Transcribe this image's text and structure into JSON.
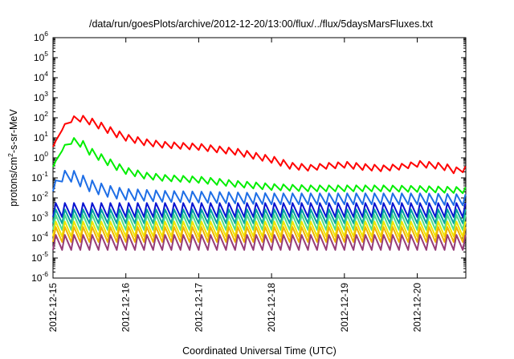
{
  "chart_data": {
    "type": "line",
    "title": "/data/run/goesPlots/archive/2012-12-20/13:00/flux/../flux/5daysMarsFluxes.txt",
    "xlabel": "Coordinated Universal Time (UTC)",
    "ylabel": {
      "prefix": "protons/cm",
      "exponent": "2",
      "suffix": "-s-sr-MeV"
    },
    "x_tick_labels": [
      "2012-12-15",
      "2012-12-16",
      "2012-12-17",
      "2012-12-18",
      "2012-12-19",
      "2012-12-20"
    ],
    "xlim": [
      "2012-12-15T00:00",
      "2012-12-20T16:00"
    ],
    "y_tick_labels": [
      {
        "base": "10",
        "exp": "-6"
      },
      {
        "base": "10",
        "exp": "-5"
      },
      {
        "base": "10",
        "exp": "-4"
      },
      {
        "base": "10",
        "exp": "-3"
      },
      {
        "base": "10",
        "exp": "-2"
      },
      {
        "base": "10",
        "exp": "-1"
      },
      {
        "base": "10",
        "exp": "0"
      },
      {
        "base": "10",
        "exp": "1"
      },
      {
        "base": "10",
        "exp": "2"
      },
      {
        "base": "10",
        "exp": "3"
      },
      {
        "base": "10",
        "exp": "4"
      },
      {
        "base": "10",
        "exp": "5"
      },
      {
        "base": "10",
        "exp": "6"
      }
    ],
    "ylim": [
      1e-06,
      1000000.0
    ],
    "yscale": "log",
    "grid": false,
    "legend": "none",
    "sawtooth_period_hours": 3,
    "series": [
      {
        "color": "#ff0000",
        "x": [
          "2012-12-15T00:00",
          "2012-12-15T02:00",
          "2012-12-15T04:00",
          "2012-12-15T06:00",
          "2012-12-15T09:00",
          "2012-12-15T12:00",
          "2012-12-15T16:00",
          "2012-12-15T20:00",
          "2012-12-16T00:00",
          "2012-12-16T06:00",
          "2012-12-16T12:00",
          "2012-12-17T00:00",
          "2012-12-17T12:00",
          "2012-12-18T00:00",
          "2012-12-18T06:00",
          "2012-12-18T12:00",
          "2012-12-18T18:00",
          "2012-12-19T00:00",
          "2012-12-19T06:00",
          "2012-12-19T12:00",
          "2012-12-19T18:00",
          "2012-12-20T00:00",
          "2012-12-20T08:00",
          "2012-12-20T12:00",
          "2012-12-20T16:00"
        ],
        "y": [
          5,
          20,
          60,
          85,
          90,
          65,
          35,
          17,
          10,
          6,
          4.5,
          3.5,
          2,
          0.8,
          0.4,
          0.32,
          0.4,
          0.45,
          0.35,
          0.3,
          0.36,
          0.5,
          0.38,
          0.24,
          0.28
        ],
        "amplitude": 0.3
      },
      {
        "color": "#00ee00",
        "x": [
          "2012-12-15T00:00",
          "2012-12-15T02:00",
          "2012-12-15T04:00",
          "2012-12-15T06:00",
          "2012-12-15T09:00",
          "2012-12-15T12:00",
          "2012-12-15T16:00",
          "2012-12-15T20:00",
          "2012-12-16T00:00",
          "2012-12-16T06:00",
          "2012-12-16T12:00",
          "2012-12-17T00:00",
          "2012-12-17T12:00",
          "2012-12-18T00:00",
          "2012-12-18T12:00",
          "2012-12-19T00:00",
          "2012-12-19T12:00",
          "2012-12-20T00:00",
          "2012-12-20T16:00"
        ],
        "y": [
          0.5,
          2,
          5,
          7,
          5,
          2,
          0.9,
          0.4,
          0.22,
          0.13,
          0.1,
          0.08,
          0.05,
          0.035,
          0.03,
          0.03,
          0.03,
          0.028,
          0.024
        ],
        "amplitude": 0.3
      },
      {
        "color": "#1e6ee6",
        "x": [
          "2012-12-15T00:00",
          "2012-12-15T02:00",
          "2012-12-15T04:00",
          "2012-12-15T06:00",
          "2012-12-15T09:00",
          "2012-12-15T12:00",
          "2012-12-15T16:00",
          "2012-12-15T20:00",
          "2012-12-16T00:00",
          "2012-12-16T12:00",
          "2012-12-17T00:00",
          "2012-12-17T12:00",
          "2012-12-18T00:00",
          "2012-12-19T00:00",
          "2012-12-20T00:00",
          "2012-12-20T16:00"
        ],
        "y": [
          0.04,
          0.1,
          0.15,
          0.12,
          0.07,
          0.04,
          0.025,
          0.018,
          0.015,
          0.012,
          0.011,
          0.01,
          0.009,
          0.009,
          0.009,
          0.008
        ],
        "amplitude": 0.55
      },
      {
        "color": "#0a14d2",
        "x": [
          "2012-12-15T00:00",
          "2012-12-20T16:00"
        ],
        "y": [
          0.0025,
          0.0025
        ],
        "amplitude": 0.7
      },
      {
        "color": "#00a0a0",
        "x": [
          "2012-12-15T00:00",
          "2012-12-20T16:00"
        ],
        "y": [
          0.0012,
          0.0012
        ],
        "amplitude": 0.7
      },
      {
        "color": "#50dc8c",
        "x": [
          "2012-12-15T00:00",
          "2012-12-20T16:00"
        ],
        "y": [
          0.0006,
          0.0006
        ],
        "amplitude": 0.75
      },
      {
        "color": "#f0e600",
        "x": [
          "2012-12-15T00:00",
          "2012-12-20T16:00"
        ],
        "y": [
          0.00028,
          0.00028
        ],
        "amplitude": 0.75
      },
      {
        "color": "#f0b400",
        "x": [
          "2012-12-15T00:00",
          "2012-12-20T16:00"
        ],
        "y": [
          0.00015,
          0.00015
        ],
        "amplitude": 0.75
      },
      {
        "color": "#963c78",
        "x": [
          "2012-12-15T00:00",
          "2012-12-20T16:00"
        ],
        "y": [
          6e-05,
          6e-05
        ],
        "amplitude": 0.75
      }
    ]
  }
}
